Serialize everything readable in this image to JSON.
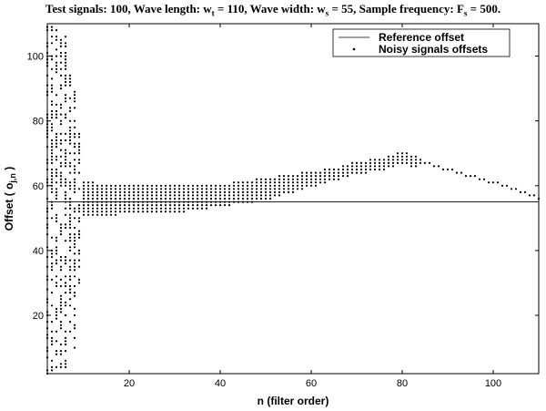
{
  "chart_data": {
    "type": "scatter",
    "title": {
      "test_signals_label": "Test signals: 100, Wave length: w",
      "wave_length_sub": "t",
      "wave_length_value": " = 110, Wave width: w",
      "wave_width_sub": "s",
      "wave_width_value": " = 55, Sample frequency: F",
      "sample_freq_sub": "s",
      "sample_freq_value": " = 500."
    },
    "xlabel": "n (filter order)",
    "ylabel": {
      "prefix": "Offset ( o",
      "sub": "j,n",
      "suffix": " )"
    },
    "xlim": [
      2,
      110
    ],
    "ylim": [
      2,
      110
    ],
    "x_ticks": [
      20,
      40,
      60,
      80,
      100
    ],
    "y_ticks": [
      20,
      40,
      60,
      80,
      100
    ],
    "grid": false,
    "legend_position": "top-right",
    "series": [
      {
        "name": "Reference offset",
        "kind": "line",
        "x": [
          2,
          110
        ],
        "y": [
          55,
          55
        ]
      },
      {
        "name": "Noisy signals offsets",
        "kind": "points",
        "envelope": {
          "n": [
            2,
            4,
            6,
            8,
            10,
            15,
            20,
            25,
            30,
            35,
            40,
            45,
            50,
            55,
            60,
            65,
            70,
            75,
            78,
            80,
            83,
            85,
            90,
            95,
            100,
            105,
            110
          ],
          "upper": [
            109,
            108,
            107,
            90,
            61,
            60,
            60,
            60,
            60,
            60,
            60,
            61,
            62,
            63,
            64,
            65,
            67,
            68,
            69,
            70,
            69,
            67,
            65,
            63,
            61,
            59,
            56
          ],
          "lower": [
            2,
            3,
            4,
            8,
            51,
            51,
            52,
            52,
            52,
            53,
            54,
            55,
            56,
            58,
            60,
            62,
            64,
            65,
            66,
            67,
            66,
            67,
            65,
            63,
            61,
            59,
            56
          ]
        }
      }
    ]
  }
}
